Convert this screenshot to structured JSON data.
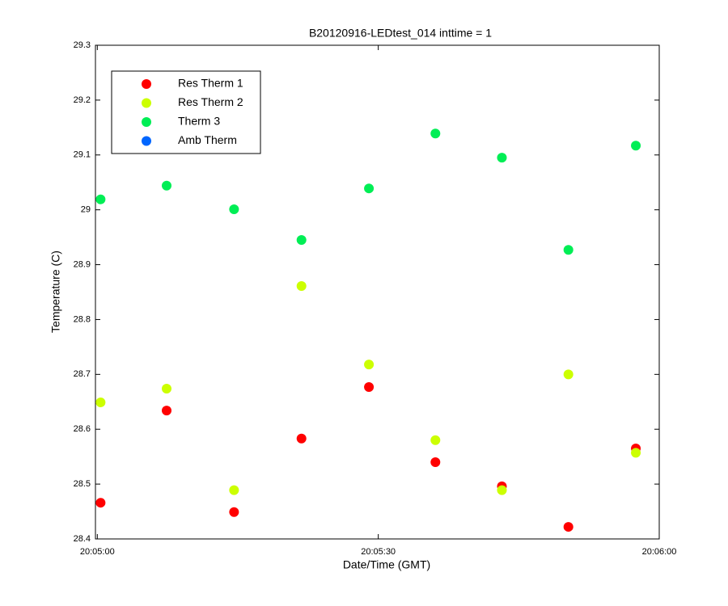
{
  "chart_data": {
    "type": "scatter",
    "title": "B20120916-LEDtest_014 inttime = 1",
    "x_label": "Date/Time (GMT)",
    "y_label": "Temperature (C)",
    "x": [
      0.35,
      7.4,
      14.6,
      21.8,
      29.0,
      36.1,
      43.2,
      50.3,
      57.5
    ],
    "series": [
      {
        "name": "Res Therm 1",
        "color": "#ff0000",
        "values": [
          28.466,
          28.634,
          28.449,
          28.583,
          28.677,
          28.54,
          28.496,
          28.422,
          28.565
        ]
      },
      {
        "name": "Res Therm 2",
        "color": "#ccff00",
        "values": [
          28.649,
          28.674,
          28.489,
          28.861,
          28.718,
          28.58,
          28.489,
          28.7,
          28.557
        ]
      },
      {
        "name": "Therm 3",
        "color": "#00ee55",
        "values": [
          29.019,
          29.044,
          29.001,
          28.945,
          29.039,
          29.139,
          29.095,
          28.927,
          29.117
        ]
      },
      {
        "name": "Amb Therm",
        "color": "#0066ff",
        "values": [
          null,
          null,
          null,
          null,
          null,
          null,
          null,
          null,
          null
        ]
      }
    ],
    "xlim": [
      -0.2,
      60
    ],
    "xticks": [
      {
        "value": 0,
        "label": "20:05:00"
      },
      {
        "value": 30,
        "label": "20:05:30"
      },
      {
        "value": 60,
        "label": "20:06:00"
      }
    ],
    "ylim": [
      28.4,
      29.3
    ],
    "yticks": [
      28.4,
      28.5,
      28.6,
      28.7,
      28.8,
      28.9,
      29,
      29.1,
      29.2,
      29.3
    ],
    "grid": false,
    "legend": "upper left"
  }
}
